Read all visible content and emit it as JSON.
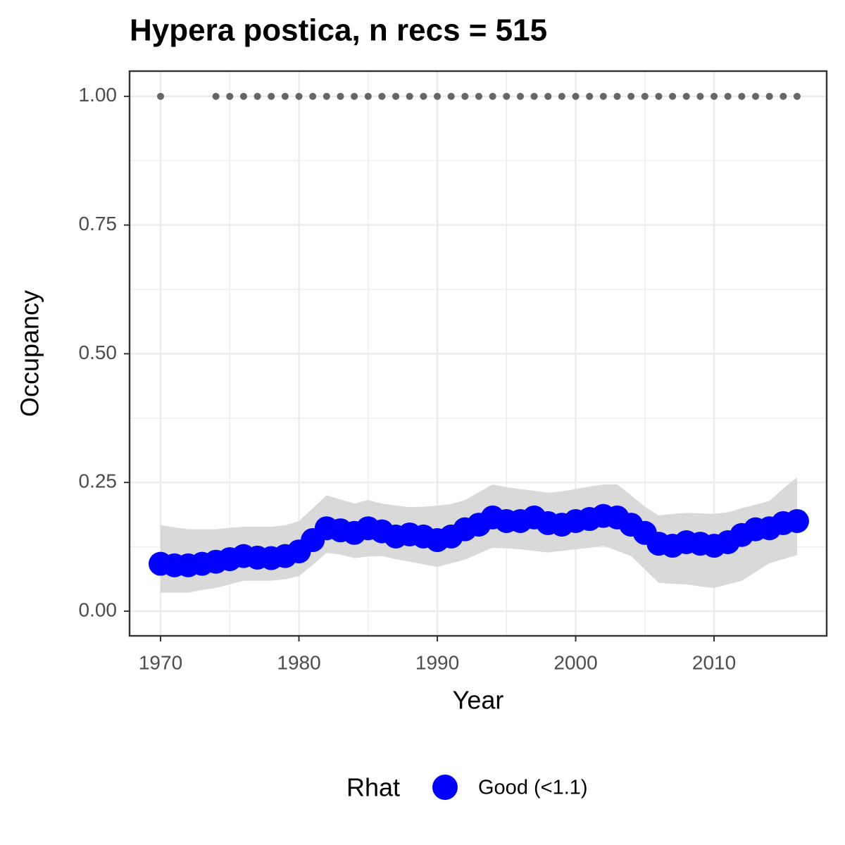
{
  "chart_data": {
    "type": "line",
    "title": "Hypera postica, n recs = 515",
    "x_label": "Year",
    "y_label": "Occupancy",
    "x": [
      1970,
      1971,
      1972,
      1973,
      1974,
      1975,
      1976,
      1977,
      1978,
      1979,
      1980,
      1981,
      1982,
      1983,
      1984,
      1985,
      1986,
      1987,
      1988,
      1989,
      1990,
      1991,
      1992,
      1993,
      1994,
      1995,
      1996,
      1997,
      1998,
      1999,
      2000,
      2001,
      2002,
      2003,
      2004,
      2005,
      2006,
      2007,
      2008,
      2009,
      2010,
      2011,
      2012,
      2013,
      2014,
      2015,
      2016
    ],
    "series": [
      {
        "name": "Good (<1.1)",
        "color": "#0000ff",
        "ribbon_color": "#d9d9d9",
        "values": [
          0.092,
          0.089,
          0.089,
          0.092,
          0.096,
          0.101,
          0.107,
          0.104,
          0.103,
          0.107,
          0.116,
          0.138,
          0.161,
          0.157,
          0.152,
          0.161,
          0.155,
          0.145,
          0.149,
          0.145,
          0.138,
          0.145,
          0.159,
          0.168,
          0.182,
          0.175,
          0.175,
          0.182,
          0.171,
          0.168,
          0.175,
          0.179,
          0.185,
          0.182,
          0.168,
          0.152,
          0.131,
          0.127,
          0.134,
          0.131,
          0.127,
          0.134,
          0.148,
          0.159,
          0.161,
          0.171,
          0.175
        ],
        "lower": [
          0.036,
          0.036,
          0.036,
          0.041,
          0.045,
          0.052,
          0.059,
          0.059,
          0.059,
          0.062,
          0.068,
          0.09,
          0.113,
          0.11,
          0.103,
          0.106,
          0.107,
          0.101,
          0.096,
          0.091,
          0.086,
          0.093,
          0.1,
          0.112,
          0.123,
          0.122,
          0.12,
          0.117,
          0.114,
          0.117,
          0.12,
          0.123,
          0.127,
          0.117,
          0.107,
          0.081,
          0.055,
          0.053,
          0.052,
          0.048,
          0.045,
          0.052,
          0.059,
          0.076,
          0.093,
          0.101,
          0.109
        ],
        "upper": [
          0.167,
          0.163,
          0.159,
          0.159,
          0.159,
          0.162,
          0.164,
          0.164,
          0.164,
          0.167,
          0.175,
          0.2,
          0.225,
          0.217,
          0.209,
          0.216,
          0.209,
          0.205,
          0.202,
          0.203,
          0.205,
          0.208,
          0.216,
          0.231,
          0.246,
          0.241,
          0.237,
          0.234,
          0.23,
          0.233,
          0.237,
          0.242,
          0.246,
          0.246,
          0.225,
          0.203,
          0.186,
          0.189,
          0.191,
          0.19,
          0.189,
          0.192,
          0.2,
          0.207,
          0.214,
          0.238,
          0.26
        ]
      }
    ],
    "records": {
      "color": "#666666",
      "x": [
        1970,
        1974,
        1975,
        1976,
        1977,
        1978,
        1979,
        1980,
        1981,
        1982,
        1983,
        1984,
        1985,
        1986,
        1987,
        1988,
        1989,
        1990,
        1991,
        1992,
        1993,
        1994,
        1995,
        1996,
        1997,
        1998,
        1999,
        2000,
        2001,
        2002,
        2003,
        2004,
        2005,
        2006,
        2007,
        2008,
        2009,
        2010,
        2011,
        2012,
        2013,
        2014,
        2015,
        2016
      ],
      "values": [
        1,
        1,
        1,
        1,
        1,
        1,
        1,
        1,
        1,
        1,
        1,
        1,
        1,
        1,
        1,
        1,
        1,
        1,
        1,
        1,
        1,
        1,
        1,
        1,
        1,
        1,
        1,
        1,
        1,
        1,
        1,
        1,
        1,
        1,
        1,
        1,
        1,
        1,
        1,
        1,
        1,
        1,
        1,
        1
      ]
    },
    "legend_title": "Rhat",
    "legend_position": "bottom",
    "grid": true,
    "xlim": [
      1967.76,
      2018.14
    ],
    "ylim": [
      -0.048,
      1.049
    ],
    "xticks": [
      1970,
      1980,
      1990,
      2000,
      2010
    ],
    "yticks": [
      {
        "value": 0,
        "label": "0.00"
      },
      {
        "value": 0.25,
        "label": "0.25"
      },
      {
        "value": 0.5,
        "label": "0.50"
      },
      {
        "value": 0.75,
        "label": "0.75"
      },
      {
        "value": 1,
        "label": "1.00"
      }
    ]
  }
}
